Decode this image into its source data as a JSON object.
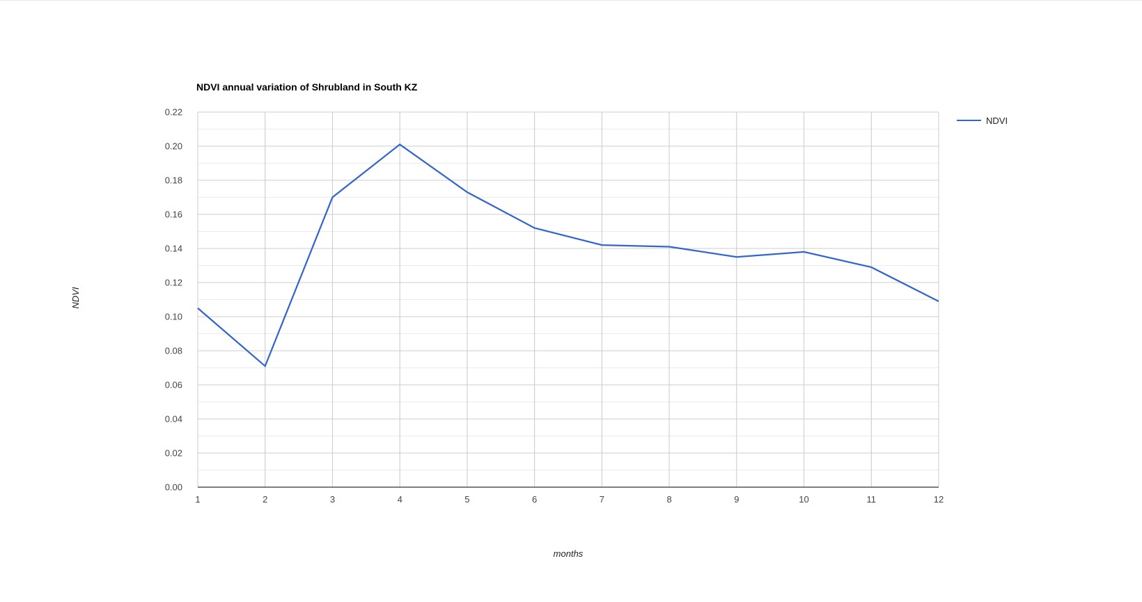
{
  "chart_data": {
    "type": "line",
    "title": "NDVI annual variation of Shrubland in South KZ",
    "xlabel": "months",
    "ylabel": "NDVI",
    "x": [
      1,
      2,
      3,
      4,
      5,
      6,
      7,
      8,
      9,
      10,
      11,
      12
    ],
    "x_tick_labels": [
      "1",
      "2",
      "3",
      "4",
      "5",
      "6",
      "7",
      "8",
      "9",
      "10",
      "11",
      "12"
    ],
    "series": [
      {
        "name": "NDVI",
        "values": [
          0.105,
          0.071,
          0.17,
          0.201,
          0.173,
          0.152,
          0.142,
          0.141,
          0.135,
          0.138,
          0.129,
          0.109
        ]
      }
    ],
    "ylim": [
      0.0,
      0.22
    ],
    "y_tick_step": 0.02,
    "y_minor_step": 0.01,
    "x_minor_step": 0.5,
    "y_tick_labels": [
      "0.00",
      "0.02",
      "0.04",
      "0.06",
      "0.08",
      "0.10",
      "0.12",
      "0.14",
      "0.16",
      "0.18",
      "0.20",
      "0.22"
    ],
    "grid": true,
    "legend": {
      "position": "right",
      "entries": [
        {
          "label": "NDVI",
          "color": "#3366cc"
        }
      ]
    },
    "colors": {
      "series": "#3366cc",
      "major_grid": "#cccccc",
      "minor_grid": "#ebebeb",
      "baseline": "#333333",
      "tick_text": "#444444",
      "axis_title_text": "#222222",
      "title_text": "#000000",
      "legend_text": "#222222",
      "background": "#ffffff"
    }
  }
}
